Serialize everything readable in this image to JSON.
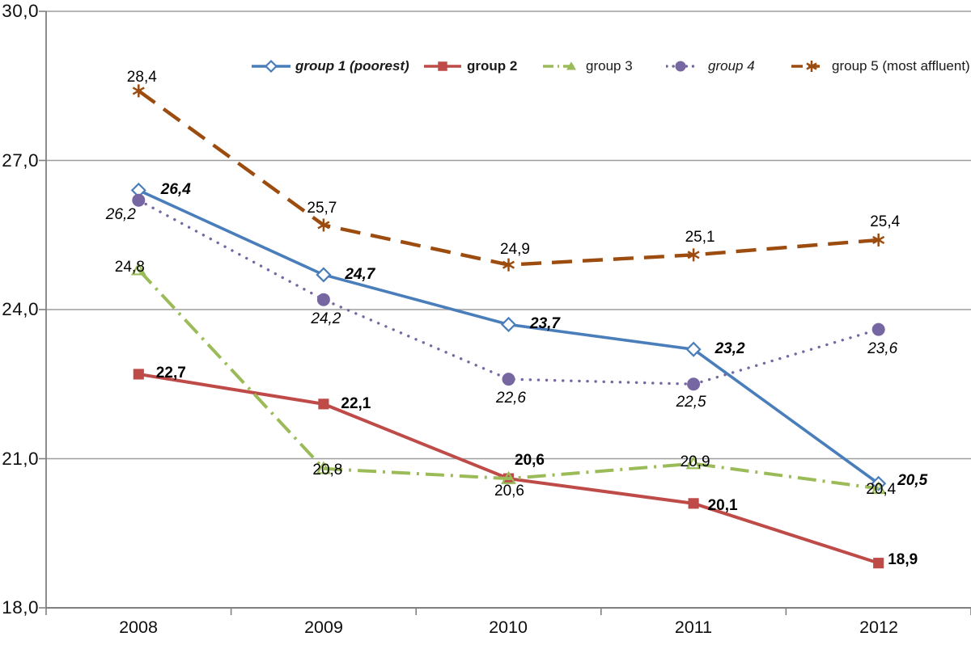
{
  "chart_data": {
    "type": "line",
    "title": "",
    "xlabel": "",
    "ylabel": "",
    "decimal_separator": ",",
    "grid": true,
    "grid_color": "#9e9e9e",
    "axis_color": "#808080",
    "legend_position": "top-inside",
    "x_categories": [
      "2008",
      "2009",
      "2010",
      "2011",
      "2012"
    ],
    "y_axis": {
      "min": 18,
      "max": 30,
      "ticks": [
        {
          "label": "30,0",
          "value": 30
        },
        {
          "label": "27,0",
          "value": 27
        },
        {
          "label": "24,0",
          "value": 24
        },
        {
          "label": "21,0",
          "value": 21
        },
        {
          "label": "18,0",
          "value": 18
        }
      ]
    },
    "series": [
      {
        "name": "group 1 (poorest)",
        "values": [
          26.4,
          24.7,
          23.7,
          23.2,
          20.5
        ],
        "labels": [
          "26,4",
          "24,7",
          "23,7",
          "23,2",
          "20,5"
        ],
        "color": "#4a7ebb",
        "line_style": "solid",
        "line_width": 3.6,
        "marker": "diamond-open",
        "label_style": "bold-italic",
        "label_offsets": [
          [
            46,
            0
          ],
          [
            45,
            0
          ],
          [
            45,
            0
          ],
          [
            45,
            0
          ],
          [
            42,
            -3
          ]
        ]
      },
      {
        "name": "group 2",
        "values": [
          22.7,
          22.1,
          20.6,
          20.1,
          18.9
        ],
        "labels": [
          "22,7",
          "22,1",
          "20,6",
          "20,1",
          "18,9"
        ],
        "color": "#be4b48",
        "line_style": "solid",
        "line_width": 4,
        "marker": "square",
        "label_style": "bold",
        "label_offsets": [
          [
            40,
            -1
          ],
          [
            40,
            0
          ],
          [
            26,
            -22
          ],
          [
            36,
            3
          ],
          [
            30,
            -4
          ]
        ]
      },
      {
        "name": "group 3",
        "values": [
          24.8,
          20.8,
          20.6,
          20.9,
          20.4
        ],
        "labels": [
          "24,8",
          "20,8",
          "20,6",
          "20,9",
          "20,4"
        ],
        "color": "#9bbb59",
        "line_style": "dash-dot",
        "line_width": 4,
        "marker": "triangle-open",
        "label_style": "normal",
        "label_offsets": [
          [
            -11,
            -3
          ],
          [
            5,
            2
          ],
          [
            1,
            16
          ],
          [
            2,
            -2
          ],
          [
            3,
            2
          ]
        ]
      },
      {
        "name": "group 4",
        "values": [
          26.2,
          24.2,
          22.6,
          22.5,
          23.6
        ],
        "labels": [
          "26,2",
          "24,2",
          "22,6",
          "22,5",
          "23,6"
        ],
        "color": "#7667a2",
        "line_style": "dotted",
        "line_width": 3.4,
        "marker": "circle",
        "label_style": "italic",
        "label_offsets": [
          [
            -22,
            18
          ],
          [
            3,
            24
          ],
          [
            3,
            24
          ],
          [
            -3,
            23
          ],
          [
            5,
            24
          ]
        ]
      },
      {
        "name": "group 5 (most affluent)",
        "values": [
          28.4,
          25.7,
          24.9,
          25.1,
          25.4
        ],
        "labels": [
          "28,4",
          "25,7",
          "24,9",
          "25,1",
          "25,4"
        ],
        "color": "#9c4c0e",
        "line_style": "dashed",
        "line_width": 4.4,
        "marker": "asterisk",
        "label_style": "normal",
        "label_offsets": [
          [
            4,
            -16
          ],
          [
            -2,
            -20
          ],
          [
            8,
            -19
          ],
          [
            8,
            -21
          ],
          [
            8,
            -22
          ]
        ]
      }
    ]
  }
}
